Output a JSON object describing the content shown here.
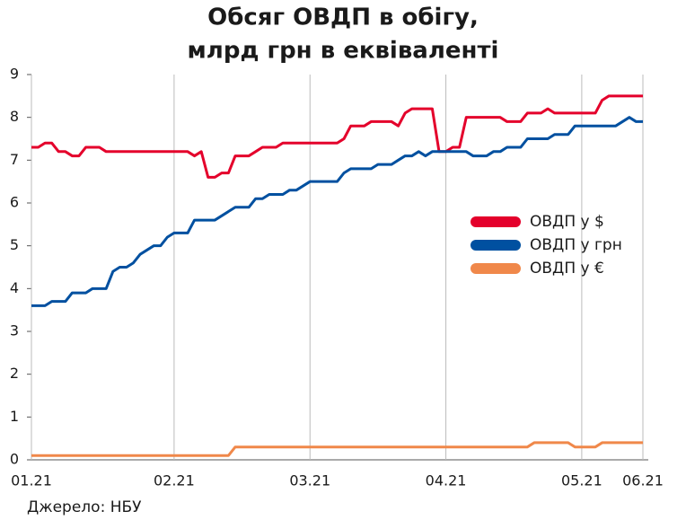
{
  "chart_data": {
    "type": "line",
    "title": "Обсяг ОВДП в обігу,",
    "subtitle": "млрд грн в еквіваленті",
    "source": "Джерело: НБУ",
    "categories": [
      "01.21",
      null,
      null,
      null,
      null,
      null,
      null,
      null,
      null,
      null,
      null,
      null,
      null,
      null,
      null,
      null,
      null,
      null,
      null,
      null,
      null,
      "02.21",
      null,
      null,
      null,
      null,
      null,
      null,
      null,
      null,
      null,
      null,
      null,
      null,
      null,
      null,
      null,
      null,
      null,
      null,
      null,
      "03.21",
      null,
      null,
      null,
      null,
      null,
      null,
      null,
      null,
      null,
      null,
      null,
      null,
      null,
      null,
      null,
      null,
      null,
      null,
      null,
      "04.21",
      null,
      null,
      null,
      null,
      null,
      null,
      null,
      null,
      null,
      null,
      null,
      null,
      null,
      null,
      null,
      null,
      null,
      null,
      null,
      "05.21",
      null,
      null,
      null,
      null,
      null,
      null,
      null,
      null,
      "06.21"
    ],
    "series": [
      {
        "name": "ОВДП у $",
        "color": "#e4002b",
        "values": [
          7.3,
          7.3,
          7.4,
          7.4,
          7.2,
          7.2,
          7.1,
          7.1,
          7.3,
          7.3,
          7.3,
          7.2,
          7.2,
          7.2,
          7.2,
          7.2,
          7.2,
          7.2,
          7.2,
          7.2,
          7.2,
          7.2,
          7.2,
          7.2,
          7.1,
          7.2,
          6.6,
          6.6,
          6.7,
          6.7,
          7.1,
          7.1,
          7.1,
          7.2,
          7.3,
          7.3,
          7.3,
          7.4,
          7.4,
          7.4,
          7.4,
          7.4,
          7.4,
          7.4,
          7.4,
          7.4,
          7.5,
          7.8,
          7.8,
          7.8,
          7.9,
          7.9,
          7.9,
          7.9,
          7.8,
          8.1,
          8.2,
          8.2,
          8.2,
          8.2,
          7.2,
          7.2,
          7.3,
          7.3,
          8.0,
          8.0,
          8.0,
          8.0,
          8.0,
          8.0,
          7.9,
          7.9,
          7.9,
          8.1,
          8.1,
          8.1,
          8.2,
          8.1,
          8.1,
          8.1,
          8.1,
          8.1,
          8.1,
          8.1,
          8.4,
          8.5,
          8.5,
          8.5,
          8.5,
          8.5,
          8.5
        ]
      },
      {
        "name": "ОВДП у грн",
        "color": "#0050a0",
        "values": [
          3.6,
          3.6,
          3.6,
          3.7,
          3.7,
          3.7,
          3.9,
          3.9,
          3.9,
          4.0,
          4.0,
          4.0,
          4.4,
          4.5,
          4.5,
          4.6,
          4.8,
          4.9,
          5.0,
          5.0,
          5.2,
          5.3,
          5.3,
          5.3,
          5.6,
          5.6,
          5.6,
          5.6,
          5.7,
          5.8,
          5.9,
          5.9,
          5.9,
          6.1,
          6.1,
          6.2,
          6.2,
          6.2,
          6.3,
          6.3,
          6.4,
          6.5,
          6.5,
          6.5,
          6.5,
          6.5,
          6.7,
          6.8,
          6.8,
          6.8,
          6.8,
          6.9,
          6.9,
          6.9,
          7.0,
          7.1,
          7.1,
          7.2,
          7.1,
          7.2,
          7.2,
          7.2,
          7.2,
          7.2,
          7.2,
          7.1,
          7.1,
          7.1,
          7.2,
          7.2,
          7.3,
          7.3,
          7.3,
          7.5,
          7.5,
          7.5,
          7.5,
          7.6,
          7.6,
          7.6,
          7.8,
          7.8,
          7.8,
          7.8,
          7.8,
          7.8,
          7.8,
          7.9,
          8.0,
          7.9,
          7.9
        ]
      },
      {
        "name": "ОВДП у €",
        "color": "#f0884a",
        "values": [
          0.1,
          0.1,
          0.1,
          0.1,
          0.1,
          0.1,
          0.1,
          0.1,
          0.1,
          0.1,
          0.1,
          0.1,
          0.1,
          0.1,
          0.1,
          0.1,
          0.1,
          0.1,
          0.1,
          0.1,
          0.1,
          0.1,
          0.1,
          0.1,
          0.1,
          0.1,
          0.1,
          0.1,
          0.1,
          0.1,
          0.3,
          0.3,
          0.3,
          0.3,
          0.3,
          0.3,
          0.3,
          0.3,
          0.3,
          0.3,
          0.3,
          0.3,
          0.3,
          0.3,
          0.3,
          0.3,
          0.3,
          0.3,
          0.3,
          0.3,
          0.3,
          0.3,
          0.3,
          0.3,
          0.3,
          0.3,
          0.3,
          0.3,
          0.3,
          0.3,
          0.3,
          0.3,
          0.3,
          0.3,
          0.3,
          0.3,
          0.3,
          0.3,
          0.3,
          0.3,
          0.3,
          0.3,
          0.3,
          0.3,
          0.4,
          0.4,
          0.4,
          0.4,
          0.4,
          0.4,
          0.3,
          0.3,
          0.3,
          0.3,
          0.4,
          0.4,
          0.4,
          0.4,
          0.4,
          0.4,
          0.4
        ]
      }
    ],
    "ylim": [
      0,
      9
    ],
    "yticks": [
      0,
      1,
      2,
      3,
      4,
      5,
      6,
      7,
      8,
      9
    ],
    "grid": true
  }
}
